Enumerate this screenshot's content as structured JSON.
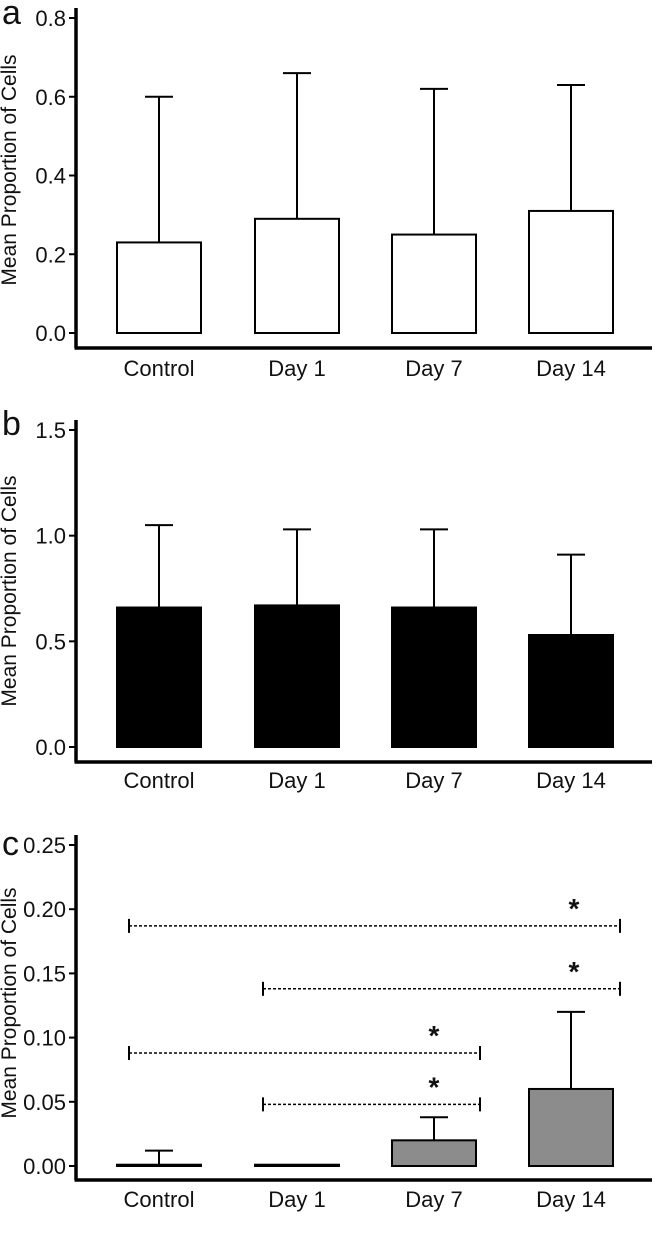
{
  "chart_data": [
    {
      "panel": "a",
      "type": "bar",
      "categories": [
        "Control",
        "Day 1",
        "Day 7",
        "Day 14"
      ],
      "values": [
        0.23,
        0.29,
        0.25,
        0.31
      ],
      "error_upper": [
        0.37,
        0.37,
        0.37,
        0.32
      ],
      "ylabel": "Mean Proportion of Cells",
      "ylim": [
        0,
        0.8
      ],
      "yticks": [
        "0.0",
        "0.2",
        "0.4",
        "0.6",
        "0.8"
      ],
      "bar_fill": "#ffffff",
      "significance": []
    },
    {
      "panel": "b",
      "type": "bar",
      "categories": [
        "Control",
        "Day 1",
        "Day 7",
        "Day 14"
      ],
      "values": [
        0.66,
        0.67,
        0.66,
        0.53
      ],
      "error_upper": [
        0.39,
        0.36,
        0.37,
        0.38
      ],
      "ylabel": "Mean Proportion of Cells",
      "ylim": [
        0,
        1.5
      ],
      "yticks": [
        "0.0",
        "0.5",
        "1.0",
        "1.5"
      ],
      "bar_fill": "#000000",
      "significance": []
    },
    {
      "panel": "c",
      "type": "bar",
      "categories": [
        "Control",
        "Day 1",
        "Day 7",
        "Day 14"
      ],
      "values": [
        0.001,
        0.001,
        0.02,
        0.06
      ],
      "error_upper": [
        0.011,
        0.0,
        0.018,
        0.06
      ],
      "ylabel": "Mean Proportion of Cells",
      "ylim": [
        0,
        0.25
      ],
      "yticks": [
        "0.00",
        "0.05",
        "0.10",
        "0.15",
        "0.20",
        "0.25"
      ],
      "bar_fill": "#8c8c8c",
      "significance": [
        {
          "from": "Control",
          "to": "Day 14",
          "label": "*",
          "y": 0.187
        },
        {
          "from": "Day 1",
          "to": "Day 14",
          "label": "*",
          "y": 0.138
        },
        {
          "from": "Control",
          "to": "Day 7",
          "label": "*",
          "y": 0.088
        },
        {
          "from": "Day 1",
          "to": "Day 7",
          "label": "*",
          "y": 0.048
        }
      ]
    }
  ]
}
